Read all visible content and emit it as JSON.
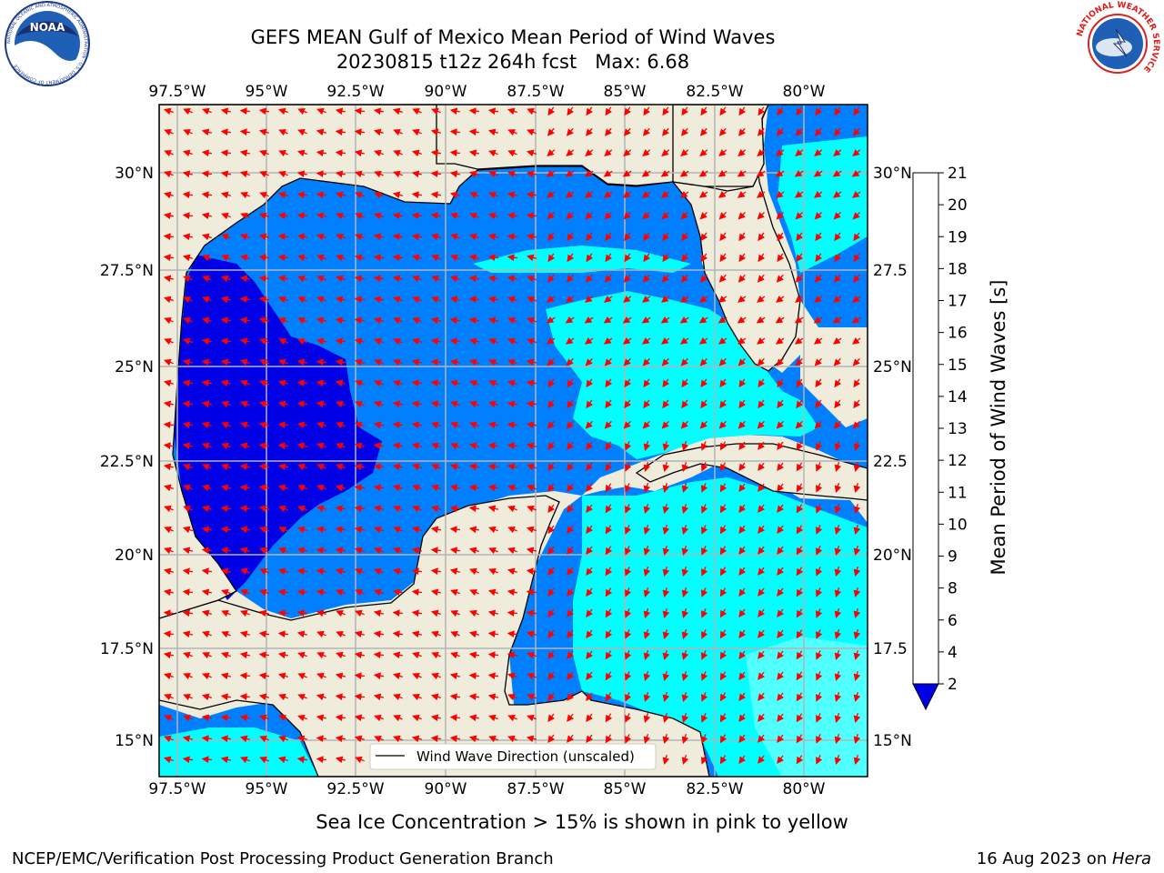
{
  "title": {
    "line1": "GEFS MEAN Gulf of Mexico Mean Period of Wind Waves",
    "line2": "20230815 t12z 264h fcst   Max: 6.68"
  },
  "logos": {
    "noaa": {
      "center_text": "NOAA",
      "ring_text": "NATIONAL OCEANIC AND ATMOSPHERIC ADMINISTRATION · U.S. DEPARTMENT OF COMMERCE"
    },
    "nws": {
      "ring_text": "NATIONAL WEATHER SERVICE"
    }
  },
  "map": {
    "lon_labels": [
      "97.5°W",
      "95°W",
      "92.5°W",
      "90°W",
      "87.5°W",
      "85°W",
      "82.5°W",
      "80°W"
    ],
    "lat_labels_left": [
      "30°N",
      "27.5°N",
      "25°N",
      "22.5°N",
      "20°N",
      "17.5°N",
      "15°N"
    ],
    "lat_labels_right": [
      "30°N",
      "27.5",
      "25°N",
      "22.5",
      "20°N",
      "17.5",
      "15°N"
    ],
    "legend_label": "Wind Wave Direction (unscaled)",
    "colors": {
      "land": "#efecdc",
      "coast": "#000000",
      "grid": "#b4b4b4",
      "arrow": "#ff0000",
      "period_2_4": "#0080ff",
      "period_lt_2": "#0000e6",
      "period_4_6": "#00ffff",
      "period_6_8": "#50ffff"
    }
  },
  "colorbar": {
    "label": "Mean Period of Wind Waves [s]",
    "ticks": [
      "2",
      "4",
      "6",
      "8",
      "9",
      "10",
      "11",
      "12",
      "13",
      "14",
      "15",
      "16",
      "17",
      "18",
      "19",
      "20",
      "21"
    ],
    "colors": [
      "#0080ff",
      "#00ffff",
      "#50ffff",
      "#a0ffff",
      "#50ff80",
      "#00e600",
      "#50dc00",
      "#a0e600",
      "#d2f000",
      "#e6f500",
      "#ffff00",
      "#ffe000",
      "#ffb400",
      "#ff8c00",
      "#ff5000",
      "#ff2800",
      "#ff0000"
    ],
    "extend_color": "#0000e6"
  },
  "footer": {
    "note": "Sea Ice Concentration > 15% is shown in pink to yellow",
    "credit": "NCEP/EMC/Verification Post Processing Product Generation Branch",
    "date": "16 Aug 2023 on ",
    "machine": "Hera"
  }
}
